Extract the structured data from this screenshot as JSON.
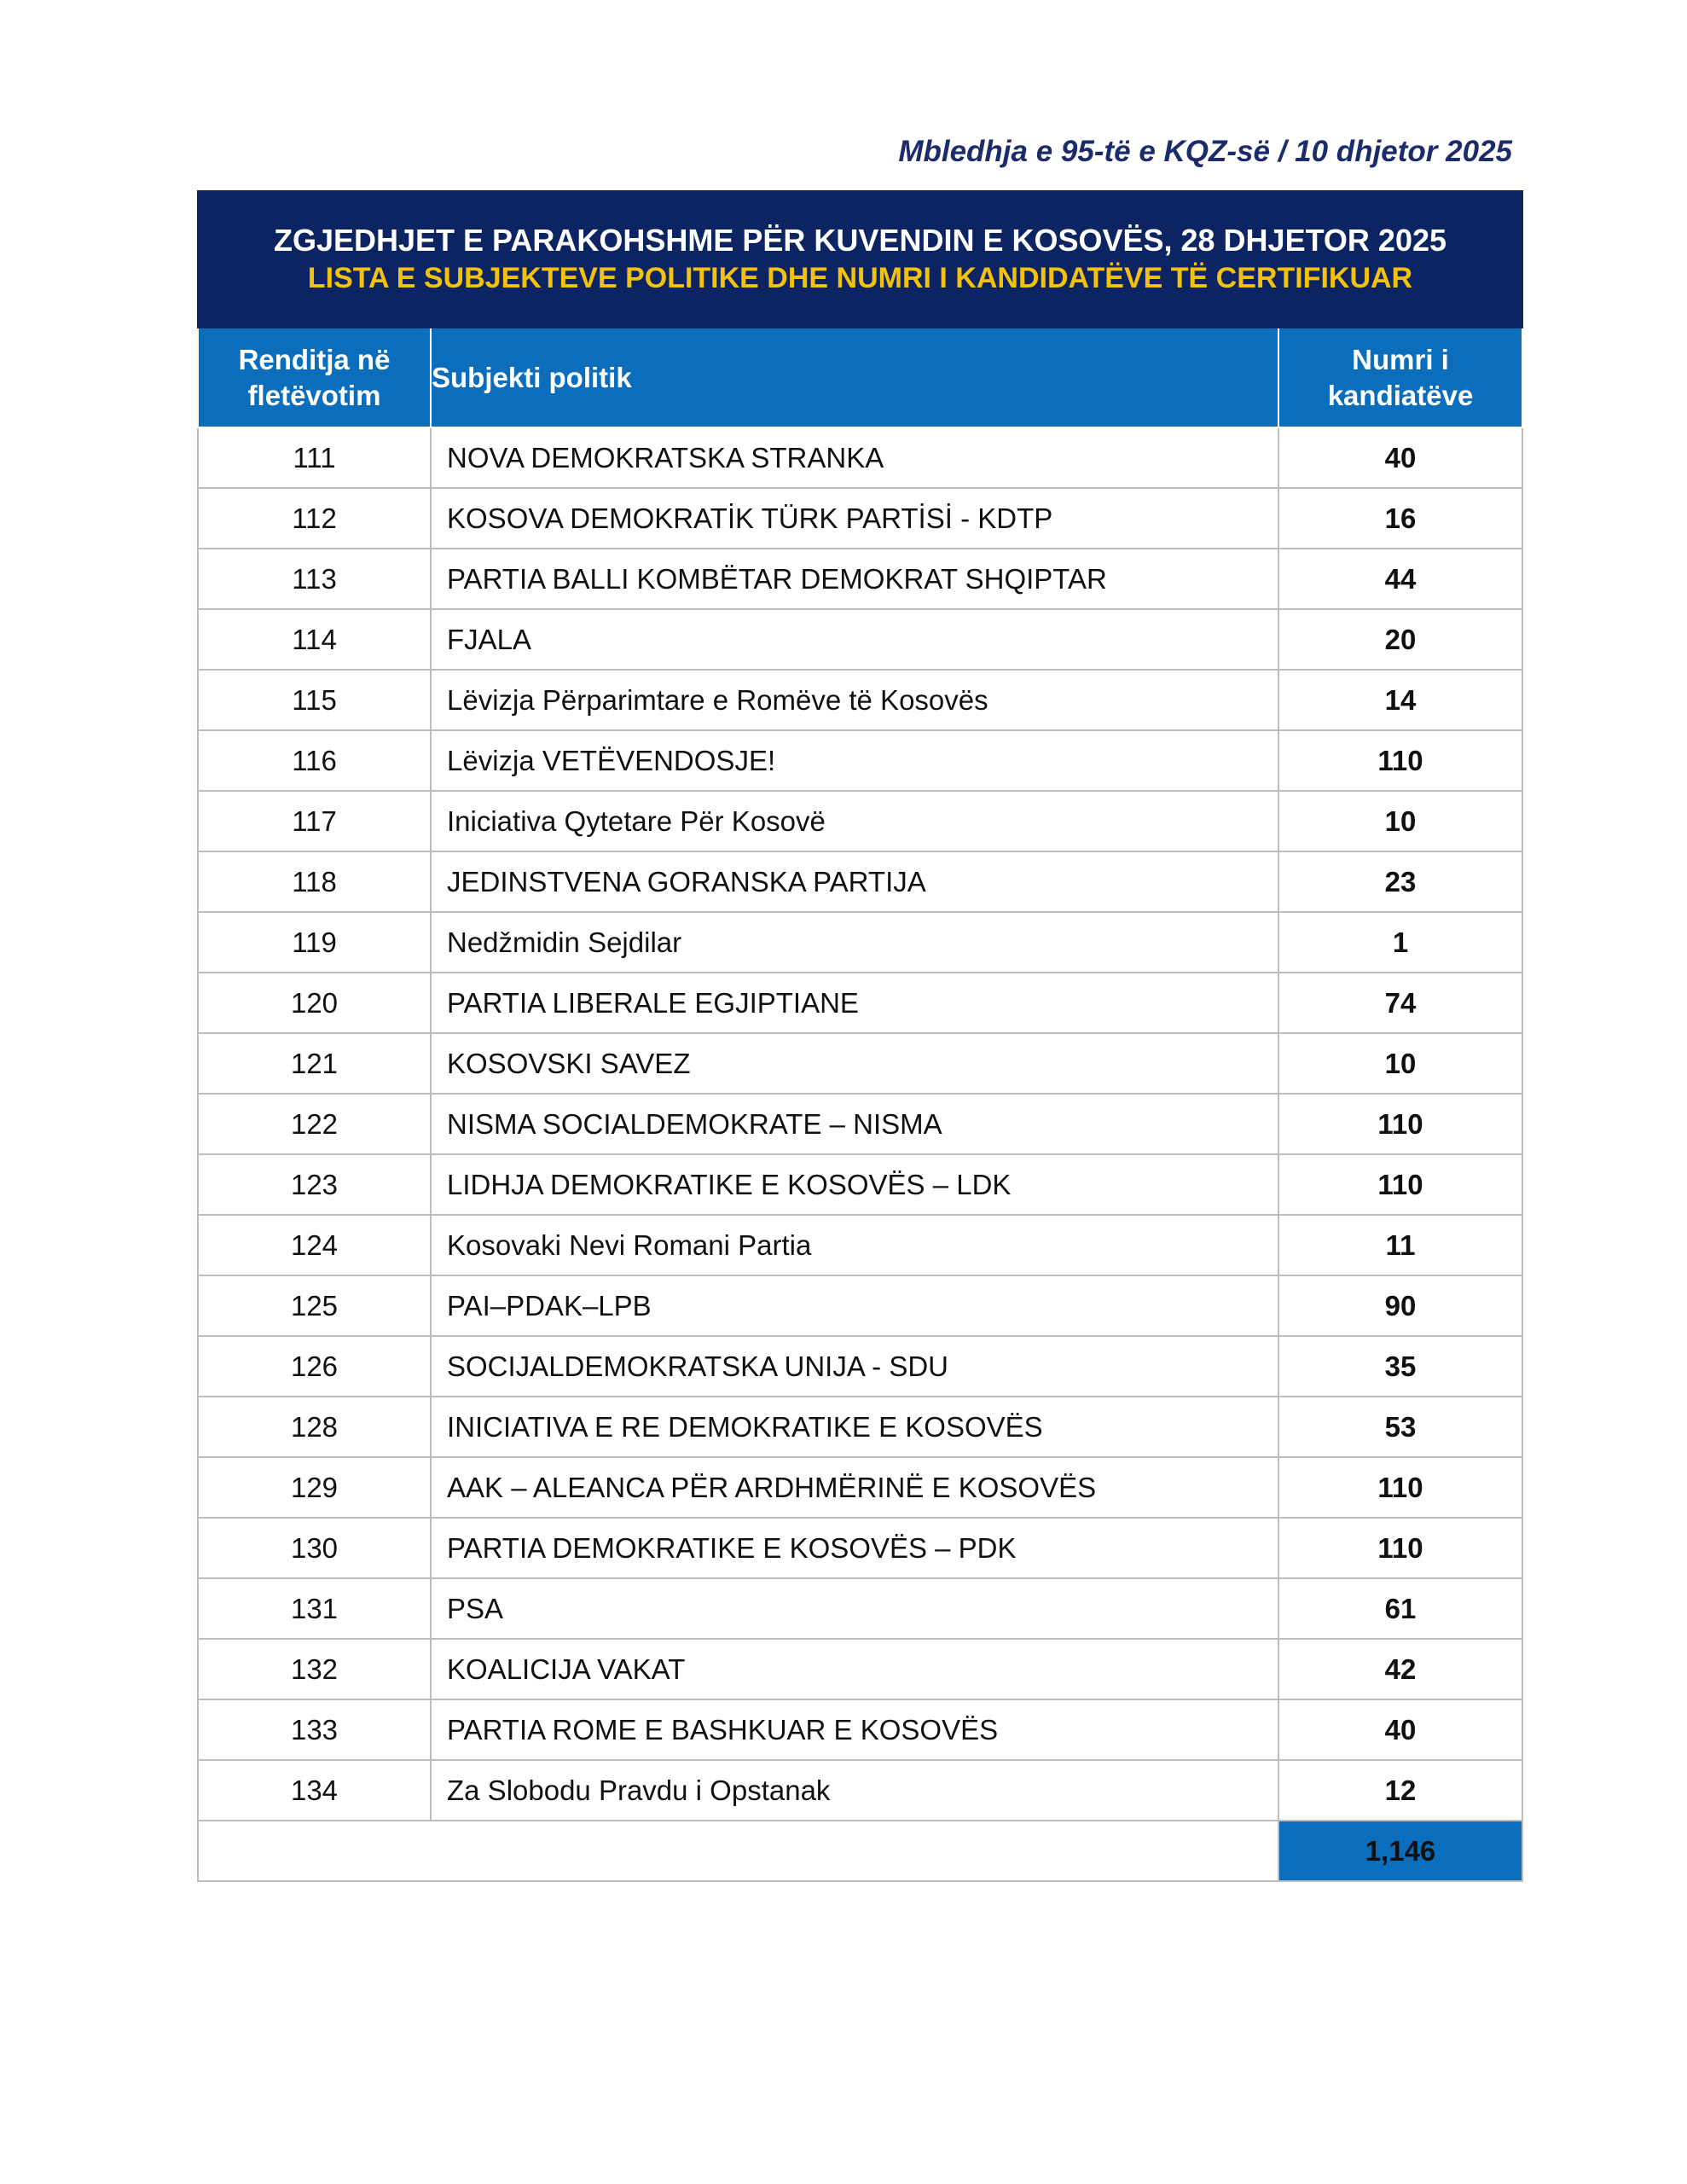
{
  "header": {
    "meeting": "Mbledhja e 95-të e KQZ-së / 10 dhjetor 2025"
  },
  "table": {
    "title": "ZGJEDHJET E PARAKOHSHME PËR KUVENDIN E KOSOVËS, 28 DHJETOR 2025",
    "subtitle": "LISTA E SUBJEKTEVE POLITIKE DHE NUMRI I KANDIDATËVE TË CERTIFIKUAR",
    "columns": [
      "Renditja në fletëvotim",
      "Subjekti politik",
      "Numri i kandiatëve"
    ],
    "rows": [
      [
        111,
        "NOVA DEMOKRATSKA STRANKA",
        40
      ],
      [
        112,
        "KOSOVA DEMOKRATİK TÜRK PARTİSİ - KDTP",
        16
      ],
      [
        113,
        "PARTIA BALLI KOMBËTAR DEMOKRAT SHQIPTAR",
        44
      ],
      [
        114,
        "FJALA",
        20
      ],
      [
        115,
        "Lëvizja Përparimtare e Romëve të Kosovës",
        14
      ],
      [
        116,
        "Lëvizja VETËVENDOSJE!",
        110
      ],
      [
        117,
        "Iniciativa Qytetare Për Kosovë",
        10
      ],
      [
        118,
        "JEDINSTVENA GORANSKA PARTIJA",
        23
      ],
      [
        119,
        "Nedžmidin Sejdilar",
        1
      ],
      [
        120,
        "PARTIA LIBERALE EGJIPTIANE",
        74
      ],
      [
        121,
        "KOSOVSKI SAVEZ",
        10
      ],
      [
        122,
        "NISMA SOCIALDEMOKRATE – NISMA",
        110
      ],
      [
        123,
        "LIDHJA DEMOKRATIKE E KOSOVËS – LDK",
        110
      ],
      [
        124,
        "Kosovaki Nevi Romani Partia",
        11
      ],
      [
        125,
        "PAI–PDAK–LPB",
        90
      ],
      [
        126,
        "SOCIJALDEMOKRATSKA UNIJA - SDU",
        35
      ],
      [
        128,
        "INICIATIVA E RE DEMOKRATIKE E KOSOVËS",
        53
      ],
      [
        129,
        "AAK – ALEANCA PËR ARDHMËRINË E KOSOVËS",
        110
      ],
      [
        130,
        "PARTIA DEMOKRATIKE E KOSOVËS – PDK",
        110
      ],
      [
        131,
        "PSA",
        61
      ],
      [
        132,
        "KOALICIJA VAKAT",
        42
      ],
      [
        133,
        "PARTIA ROME E BASHKUAR E KOSOVËS",
        40
      ],
      [
        134,
        "Za Slobodu Pravdu i Opstanak",
        12
      ]
    ],
    "total": "1,146"
  }
}
